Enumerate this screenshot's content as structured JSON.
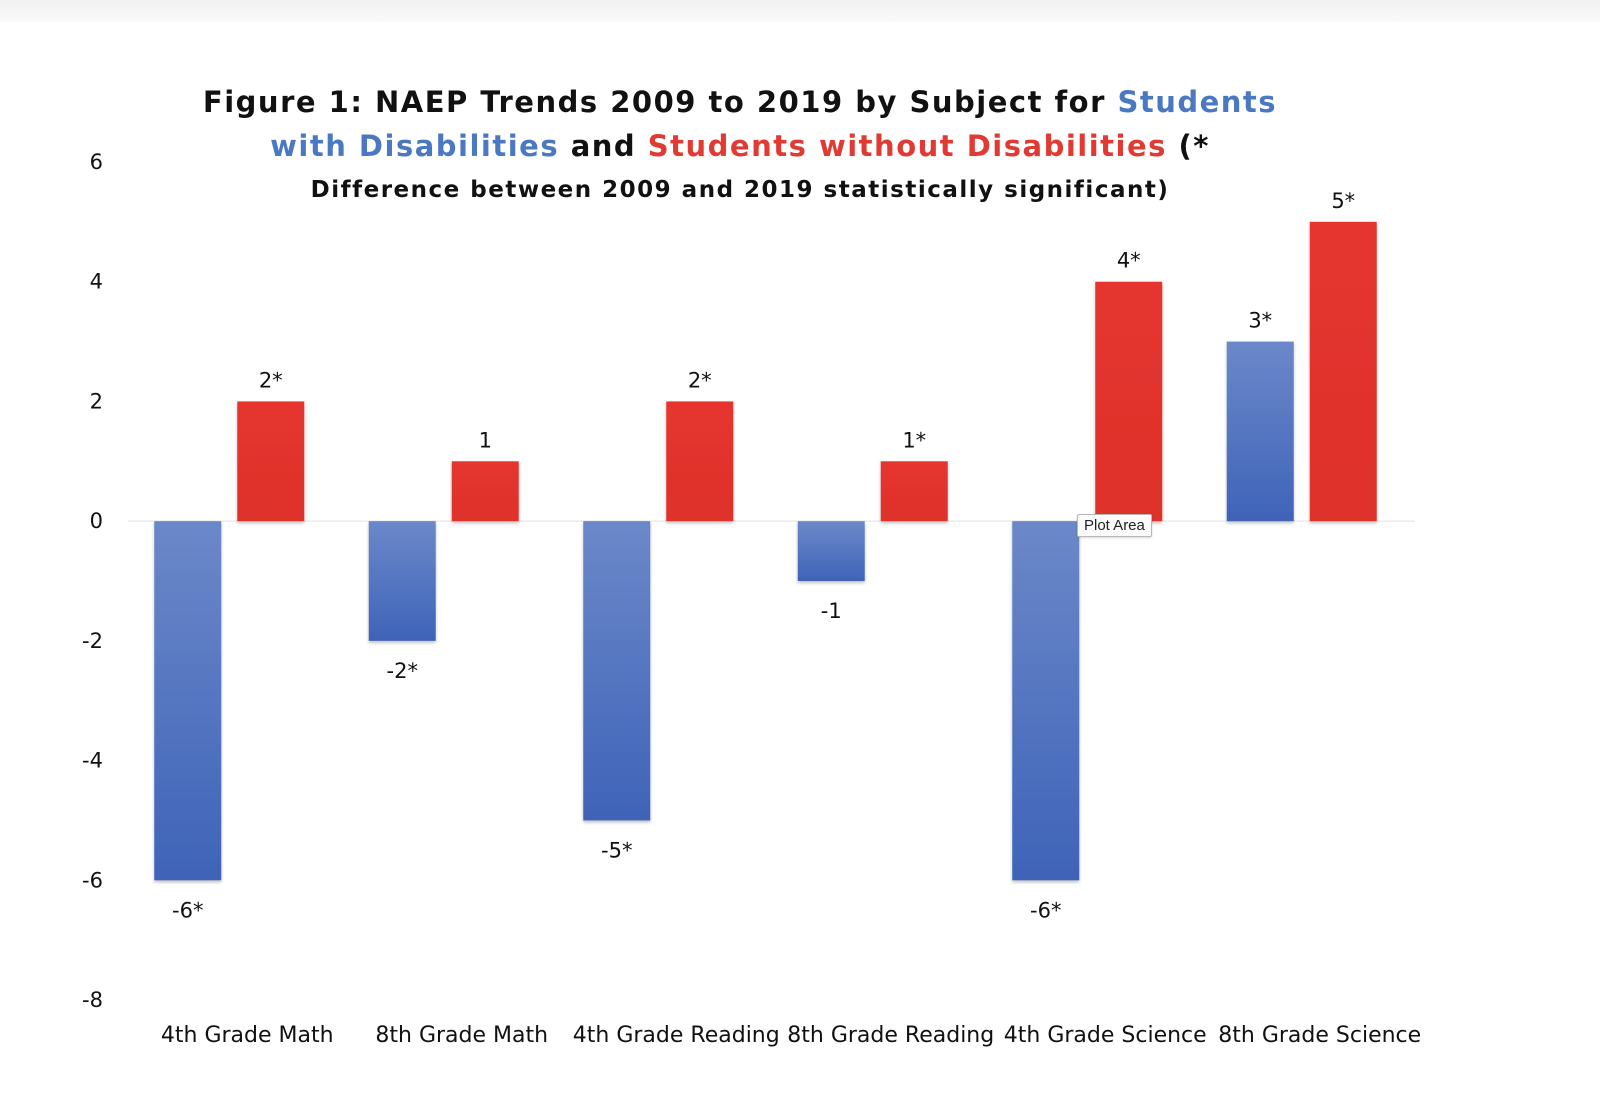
{
  "title": {
    "line1_prefix": "Figure 1: NAEP Trends 2009 to 2019 by Subject for ",
    "line1_blue": "Students",
    "line2_blue": "with Disabilities",
    "line2_mid": " and ",
    "line2_red": "Students without Disabilities",
    "line2_suffix": " (*",
    "line3": "Difference between 2009 and 2019 statistically significant)"
  },
  "tooltip": "Plot Area",
  "colors": {
    "with_disabilities": "#4a74c4",
    "without_disabilities": "#e3342d"
  },
  "chart_data": {
    "type": "bar",
    "categories": [
      "4th Grade Math",
      "8th Grade Math",
      "4th Grade Reading",
      "8th Grade Reading",
      "4th Grade Science",
      "8th Grade Science"
    ],
    "series": [
      {
        "name": "Students with Disabilities",
        "values": [
          -6,
          -2,
          -5,
          -1,
          -6,
          3
        ],
        "labels": [
          "-6*",
          "-2*",
          "-5*",
          "-1",
          "-6*",
          "3*"
        ]
      },
      {
        "name": "Students without Disabilities",
        "values": [
          2,
          1,
          2,
          1,
          4,
          5
        ],
        "labels": [
          "2*",
          "1",
          "2*",
          "1*",
          "4*",
          "5*"
        ]
      }
    ],
    "ylim": [
      -8,
      6
    ],
    "yticks": [
      6,
      4,
      2,
      0,
      -2,
      -4,
      -6,
      -8
    ],
    "grid": false,
    "legend": "none"
  }
}
